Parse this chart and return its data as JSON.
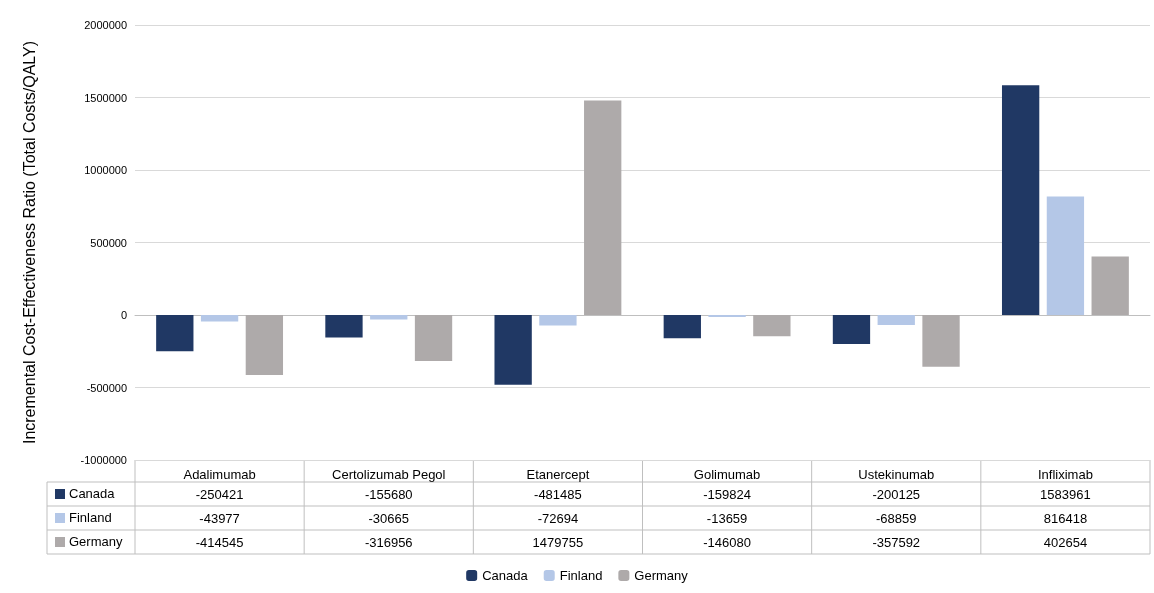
{
  "chart_data": {
    "type": "bar",
    "ylabel": "Incremental Cost-Effectiveness Ratio (Total Costs/QALY)",
    "categories": [
      "Adalimumab",
      "Certolizumab Pegol",
      "Etanercept",
      "Golimumab",
      "Ustekinumab",
      "Infliximab"
    ],
    "series": [
      {
        "name": "Canada",
        "color": "#203864",
        "values": [
          -250421,
          -155680,
          -481485,
          -159824,
          -200125,
          1583961
        ]
      },
      {
        "name": "Finland",
        "color": "#b4c7e7",
        "values": [
          -43977,
          -30665,
          -72694,
          -13659,
          -68859,
          816418
        ]
      },
      {
        "name": "Germany",
        "color": "#aeaaaa",
        "values": [
          -414545,
          -316956,
          1479755,
          -146080,
          -357592,
          402654
        ]
      }
    ],
    "ylim": [
      -1000000,
      2000000
    ],
    "yticks": [
      -1000000,
      -500000,
      0,
      500000,
      1000000,
      1500000,
      2000000
    ],
    "grid": "y",
    "legend": "bottom",
    "data_labels": true
  }
}
